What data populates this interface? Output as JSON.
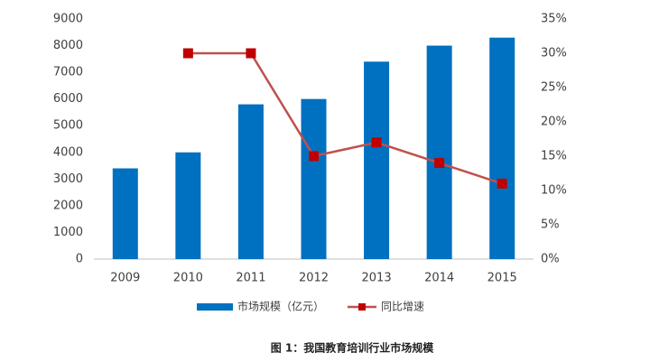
{
  "chart_data": {
    "type": "bar",
    "caption": "图 1：我国教育培训行业市场规模",
    "categories": [
      "2009",
      "2010",
      "2011",
      "2012",
      "2013",
      "2014",
      "2015"
    ],
    "series": [
      {
        "name": "市场规模（亿元）",
        "type": "bar",
        "color": "#0070c0",
        "values": [
          3400,
          4000,
          5800,
          6000,
          7400,
          8000,
          8300
        ]
      },
      {
        "name": "同比增速",
        "type": "line",
        "axis": "y2",
        "color": "#c0504d",
        "marker_color": "#c00000",
        "values": [
          null,
          30,
          30,
          15,
          17,
          14,
          11
        ]
      }
    ],
    "ylim": [
      0,
      9000
    ],
    "yticks": [
      0,
      1000,
      2000,
      3000,
      4000,
      5000,
      6000,
      7000,
      8000,
      9000
    ],
    "y2lim": [
      0,
      35
    ],
    "y2ticks": [
      {
        "value": 0,
        "label": "0%"
      },
      {
        "value": 5,
        "label": "5%"
      },
      {
        "value": 10,
        "label": "10%"
      },
      {
        "value": 15,
        "label": "15%"
      },
      {
        "value": 20,
        "label": "20%"
      },
      {
        "value": 25,
        "label": "25%"
      },
      {
        "value": 30,
        "label": "30%"
      },
      {
        "value": 35,
        "label": "35%"
      }
    ],
    "grid": false
  }
}
